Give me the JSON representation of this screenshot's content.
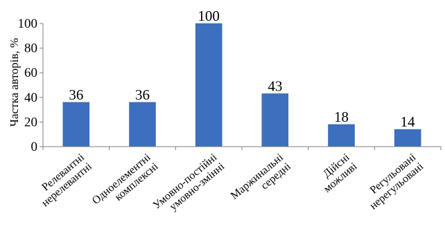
{
  "chart_data": {
    "type": "bar",
    "title": "",
    "xlabel": "",
    "ylabel": "Частка авторів, %",
    "ylim": [
      0,
      100
    ],
    "yticks": [
      0,
      20,
      40,
      60,
      80,
      100
    ],
    "grid": false,
    "legend": "none",
    "bar_color": "#3d6fbf",
    "bar_stroke": "#2e5a9e",
    "categories": [
      [
        "Релевантні",
        "нерелевантні"
      ],
      [
        "Одноелементні",
        "комплексні"
      ],
      [
        "Умовно-постійні",
        "умовно-змінні"
      ],
      [
        "Маржинальні",
        "середні"
      ],
      [
        "Дійсні",
        "можливі"
      ],
      [
        "Регульовані",
        "нерегульовані"
      ]
    ],
    "values": [
      36,
      36,
      100,
      43,
      18,
      14
    ],
    "data_labels": [
      "36",
      "36",
      "100",
      "43",
      "18",
      "14"
    ]
  }
}
